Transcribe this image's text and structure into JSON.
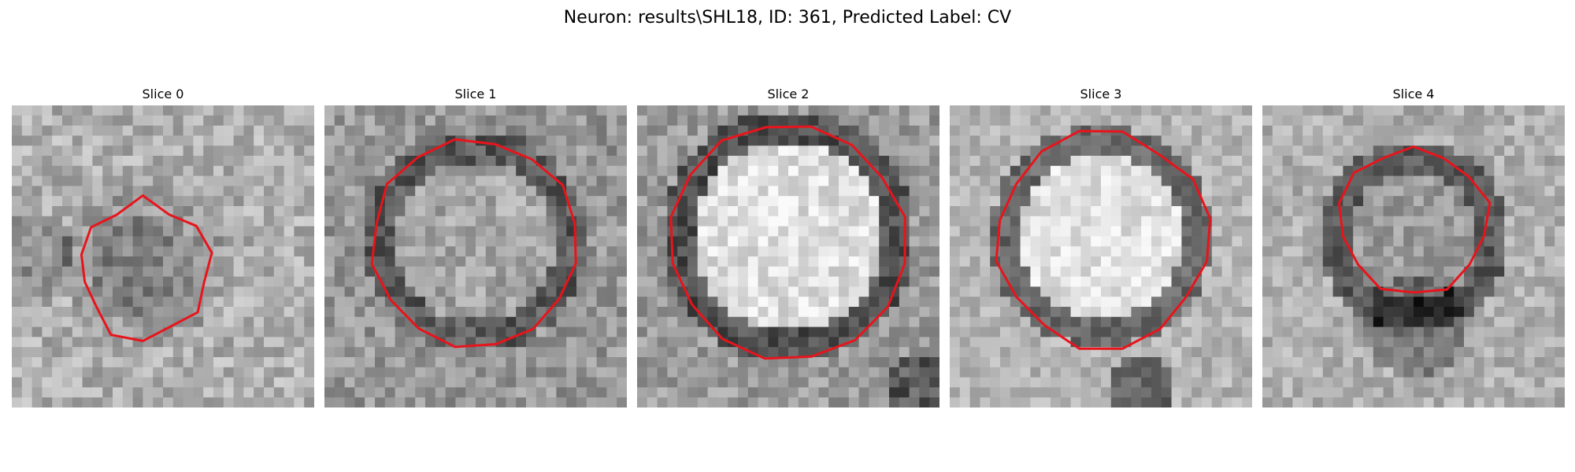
{
  "figure": {
    "title": "Neuron: results\\SHL18, ID: 361, Predicted Label: CV"
  },
  "panels": [
    {
      "title": "Slice 0",
      "variant": 0
    },
    {
      "title": "Slice 1",
      "variant": 1
    },
    {
      "title": "Slice 2",
      "variant": 2
    },
    {
      "title": "Slice 3",
      "variant": 3
    },
    {
      "title": "Slice 4",
      "variant": 4
    }
  ],
  "colors": {
    "contour": "#e8141c",
    "background": "#ffffff"
  }
}
